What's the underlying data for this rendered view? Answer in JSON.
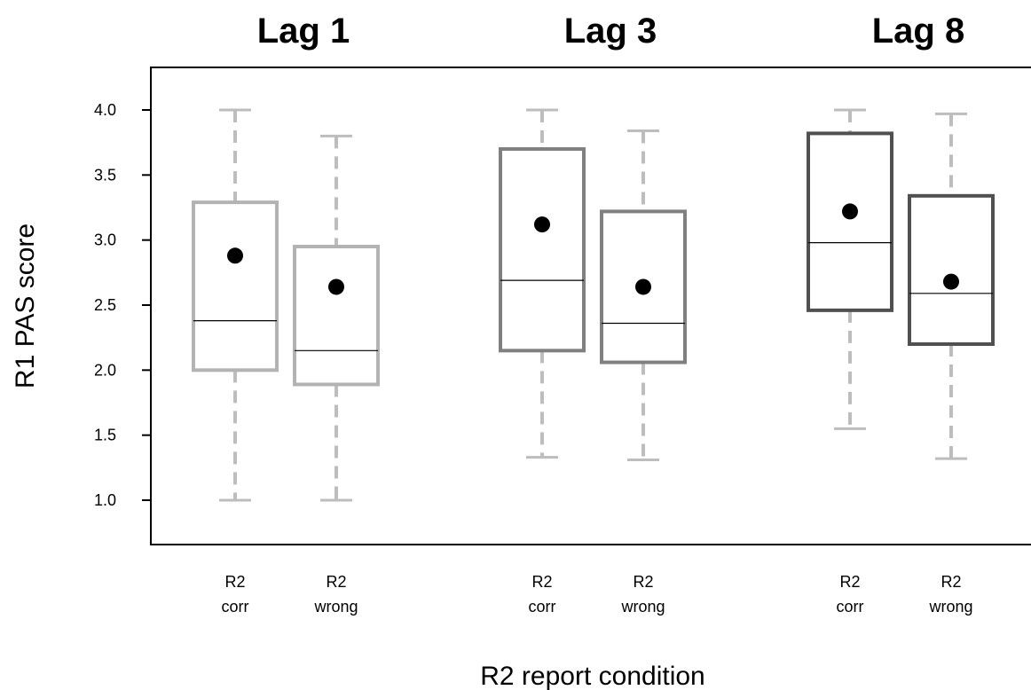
{
  "chart_data": {
    "type": "box",
    "ylabel": "R1 PAS score",
    "xlabel": "R2 report condition",
    "ylim": [
      0.65,
      4.35
    ],
    "yticks": [
      "1.0",
      "1.5",
      "2.0",
      "2.5",
      "3.0",
      "3.5",
      "4.0"
    ],
    "grid": false,
    "colors": {
      "whisker": "#bdbdbd",
      "lag1_box": "#b3b3b3",
      "lag3_box": "#808080",
      "lag8_box": "#505050",
      "median": "#000000",
      "mean_dot": "#000000"
    },
    "groups": [
      {
        "title": "Lag 1",
        "boxes": [
          {
            "label_line1": "R2",
            "label_line2": "corr",
            "whisker_low": 1.0,
            "q1": 2.0,
            "median": 2.38,
            "q3": 3.29,
            "whisker_high": 4.0,
            "mean": 2.88
          },
          {
            "label_line1": "R2",
            "label_line2": "wrong",
            "whisker_low": 1.0,
            "q1": 1.89,
            "median": 2.15,
            "q3": 2.95,
            "whisker_high": 3.8,
            "mean": 2.64
          }
        ]
      },
      {
        "title": "Lag 3",
        "boxes": [
          {
            "label_line1": "R2",
            "label_line2": "corr",
            "whisker_low": 1.33,
            "q1": 2.15,
            "median": 2.69,
            "q3": 3.7,
            "whisker_high": 4.0,
            "mean": 3.12
          },
          {
            "label_line1": "R2",
            "label_line2": "wrong",
            "whisker_low": 1.31,
            "q1": 2.06,
            "median": 2.36,
            "q3": 3.22,
            "whisker_high": 3.84,
            "mean": 2.64
          }
        ]
      },
      {
        "title": "Lag 8",
        "boxes": [
          {
            "label_line1": "R2",
            "label_line2": "corr",
            "whisker_low": 1.55,
            "q1": 2.46,
            "median": 2.98,
            "q3": 3.82,
            "whisker_high": 4.0,
            "mean": 3.22
          },
          {
            "label_line1": "R2",
            "label_line2": "wrong",
            "whisker_low": 1.32,
            "q1": 2.2,
            "median": 2.59,
            "q3": 3.34,
            "whisker_high": 3.97,
            "mean": 2.68
          }
        ]
      }
    ]
  }
}
